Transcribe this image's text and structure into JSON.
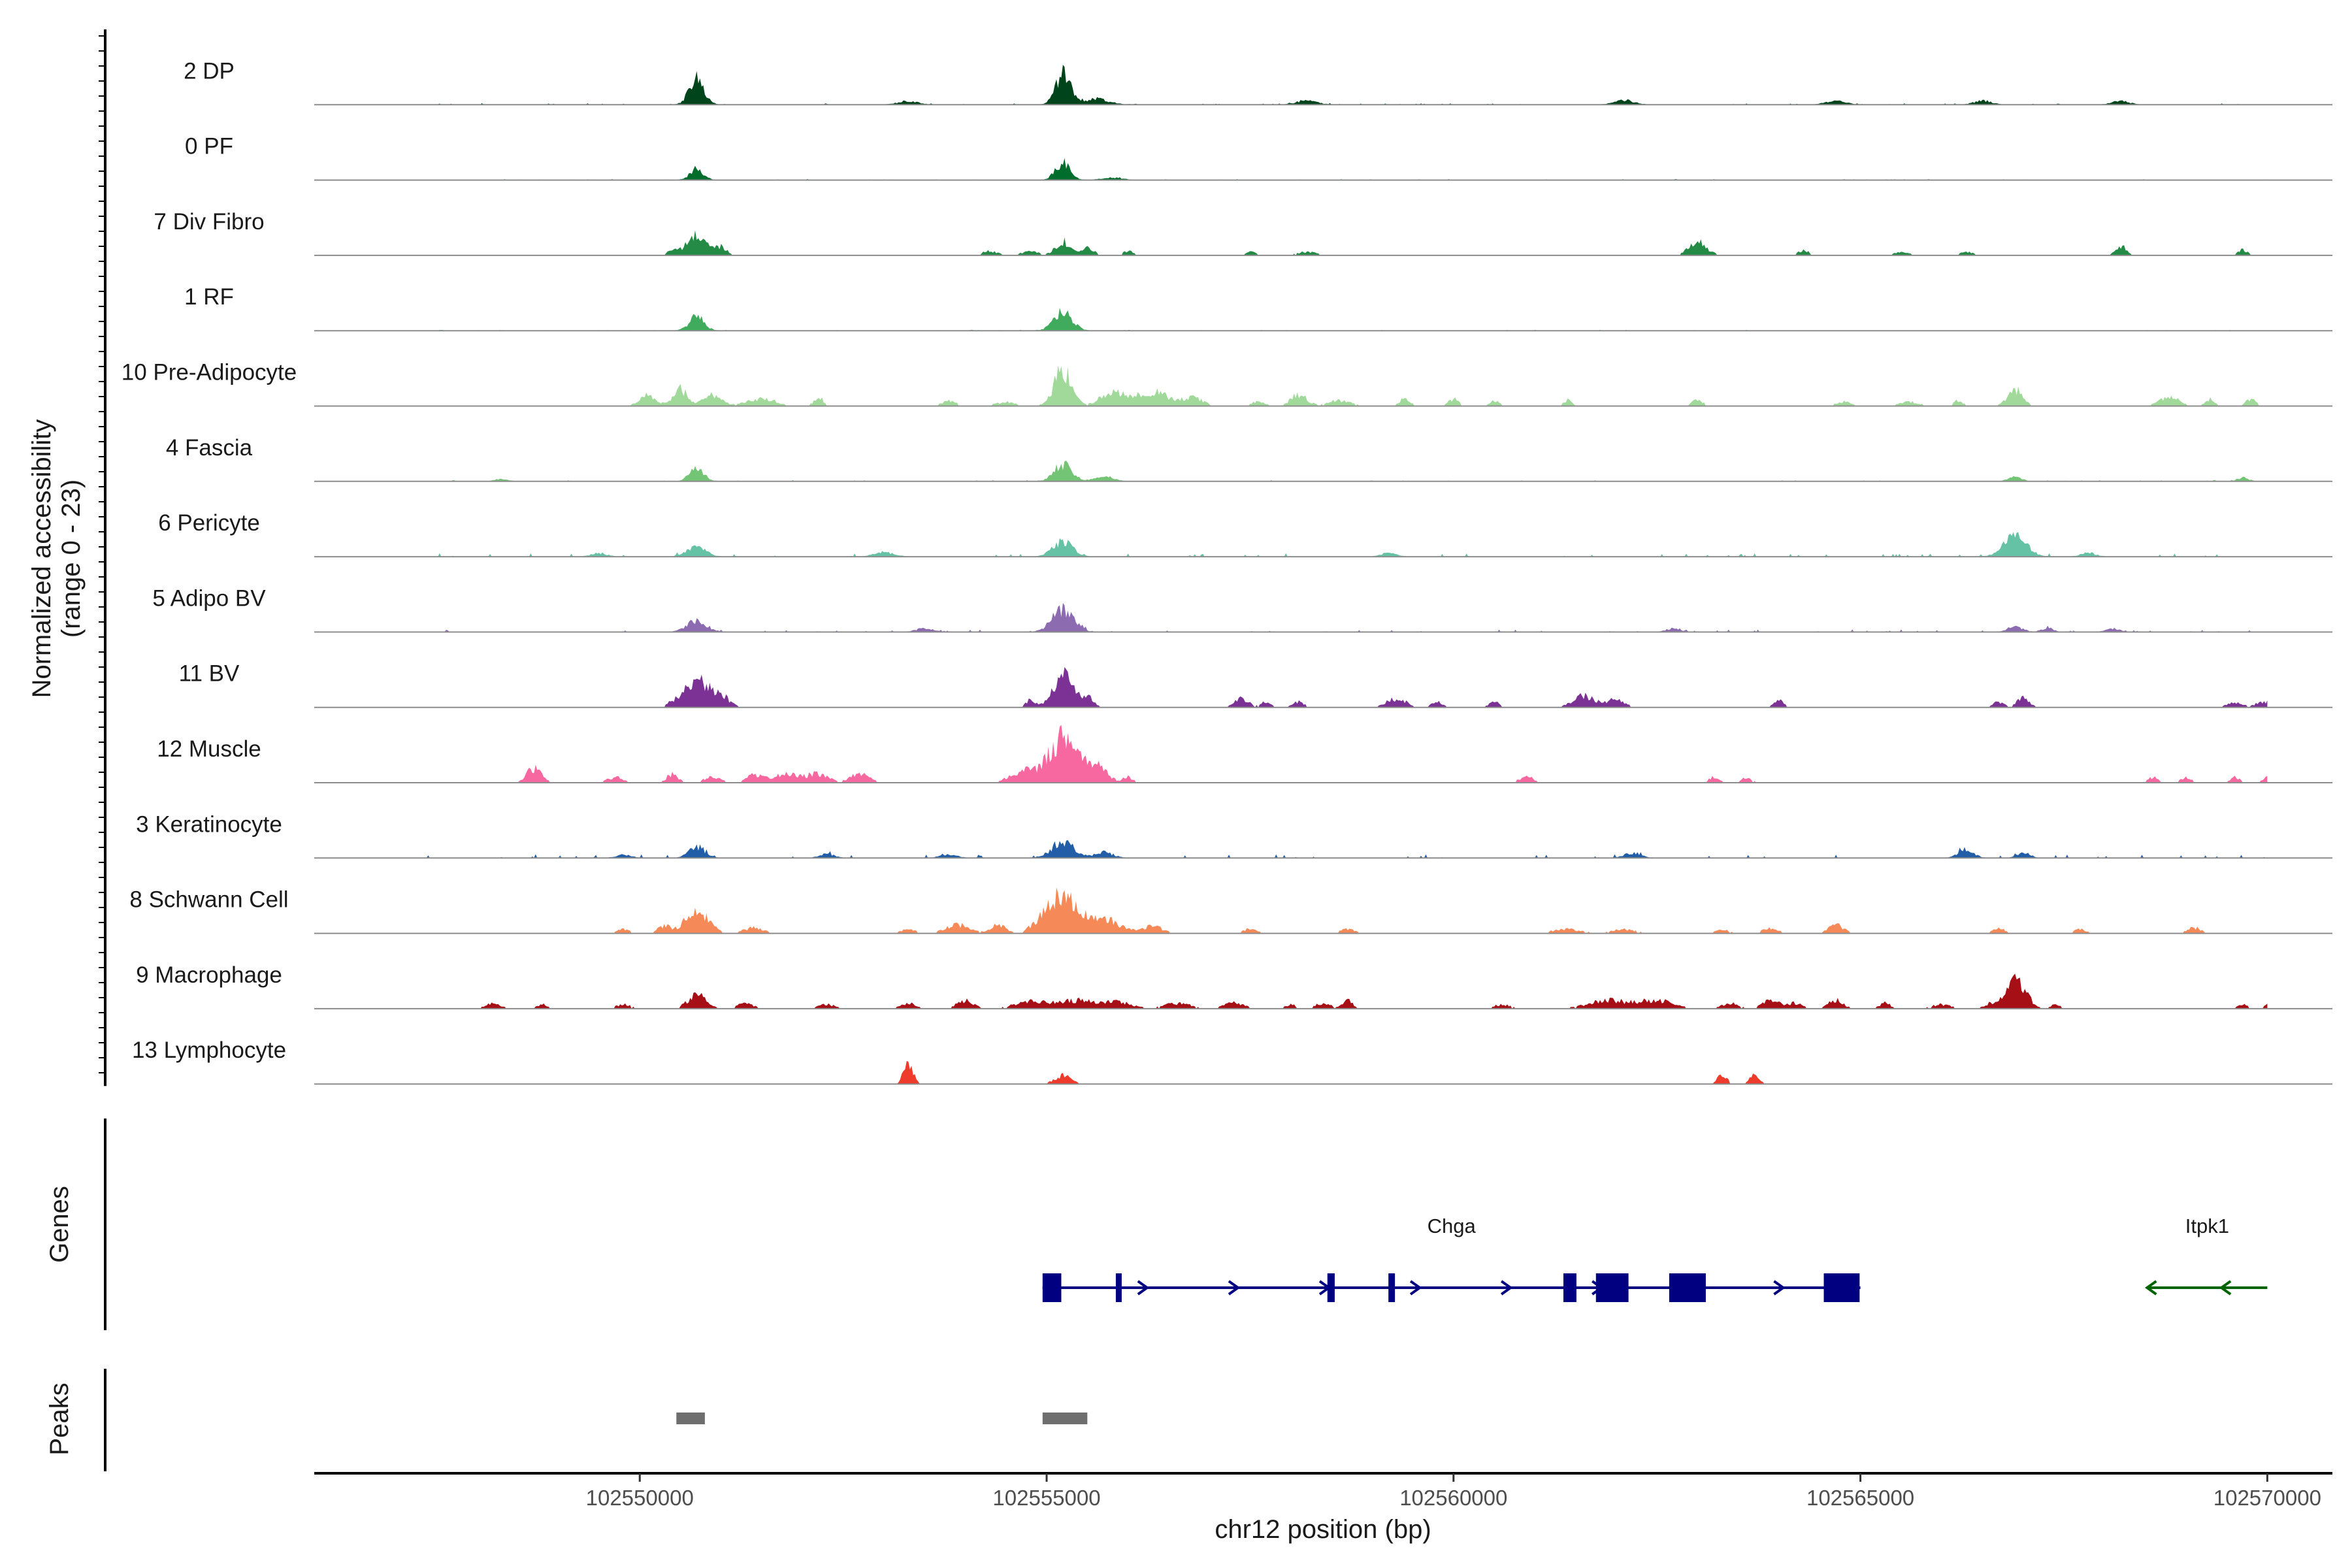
{
  "chart_data": {
    "type": "coverage",
    "chromosome": "chr12",
    "region": [
      102546000,
      102570800
    ],
    "xlabel": "chr12 position (bp)",
    "x_ticks": [
      102550000,
      102555000,
      102560000,
      102565000,
      102570000
    ],
    "x_tick_labels": [
      "102550000",
      "102555000",
      "102560000",
      "102565000",
      "102570000"
    ],
    "ylabel_line1": "Normalized accessibility",
    "ylabel_line2": "(range 0 - 23)",
    "y_range": [
      0,
      23
    ],
    "tracks": [
      {
        "label": "2 DP",
        "color": "#00441b",
        "background": 0.06,
        "spread": 0.45,
        "peaks": [
          [
            102550700,
            9,
            90
          ],
          [
            102555200,
            11,
            90
          ],
          [
            102555600,
            2,
            160
          ],
          [
            102553300,
            1.2,
            120
          ],
          [
            102558200,
            1.5,
            120
          ],
          [
            102562100,
            1.5,
            120
          ],
          [
            102564700,
            1.3,
            120
          ],
          [
            102566500,
            1.4,
            100
          ],
          [
            102568200,
            1.3,
            100
          ]
        ]
      },
      {
        "label": "0 PF",
        "color": "#006d2c",
        "background": 0.05,
        "spread": 0.3,
        "peaks": [
          [
            102550700,
            4,
            80
          ],
          [
            102555200,
            6,
            90
          ],
          [
            102555800,
            0.8,
            120
          ]
        ]
      },
      {
        "label": "7 Div Fibro",
        "color": "#238b45",
        "background": 0,
        "spread": 0,
        "peaks": [
          [
            102550700,
            7,
            120
          ],
          [
            102551000,
            3,
            70
          ],
          [
            102550400,
            2,
            60
          ],
          [
            102555200,
            5,
            90
          ],
          [
            102555500,
            2.5,
            80
          ],
          [
            102554300,
            1.5,
            100
          ],
          [
            102554800,
            1.5,
            100
          ],
          [
            102556000,
            1.5,
            60
          ],
          [
            102557500,
            1.2,
            80
          ],
          [
            102558200,
            1.2,
            120
          ],
          [
            102563000,
            5,
            110
          ],
          [
            102564300,
            2,
            60
          ],
          [
            102565500,
            1.2,
            90
          ],
          [
            102566300,
            1.2,
            80
          ],
          [
            102568200,
            3.5,
            60
          ],
          [
            102569700,
            2,
            60
          ]
        ]
      },
      {
        "label": "1 RF",
        "color": "#41ab5d",
        "background": 0.05,
        "spread": 0.25,
        "peaks": [
          [
            102550700,
            5,
            90
          ],
          [
            102555200,
            7,
            110
          ]
        ]
      },
      {
        "label": "10 Pre-Adipocyte",
        "color": "#a1d99b",
        "background": 0,
        "spread": 0,
        "peaks": [
          [
            102550100,
            4,
            100
          ],
          [
            102550500,
            6,
            90
          ],
          [
            102550900,
            4,
            110
          ],
          [
            102551500,
            2.5,
            180
          ],
          [
            102552200,
            3,
            60
          ],
          [
            102553800,
            2,
            80
          ],
          [
            102554500,
            1.5,
            120
          ],
          [
            102555200,
            13,
            110
          ],
          [
            102555800,
            5,
            140
          ],
          [
            102556300,
            5,
            200
          ],
          [
            102556800,
            3,
            120
          ],
          [
            102557600,
            1.5,
            90
          ],
          [
            102558100,
            4,
            100
          ],
          [
            102558600,
            2,
            140
          ],
          [
            102559400,
            3,
            60
          ],
          [
            102560000,
            2.5,
            60
          ],
          [
            102560500,
            2,
            60
          ],
          [
            102561400,
            2,
            60
          ],
          [
            102563000,
            2.5,
            60
          ],
          [
            102564800,
            1.5,
            100
          ],
          [
            102565600,
            1.5,
            120
          ],
          [
            102566200,
            2,
            60
          ],
          [
            102566900,
            6,
            90
          ],
          [
            102568800,
            3,
            120
          ],
          [
            102569300,
            2.5,
            60
          ],
          [
            102569800,
            2.5,
            60
          ]
        ]
      },
      {
        "label": "4 Fascia",
        "color": "#74c476",
        "background": 0.04,
        "spread": 0.4,
        "peaks": [
          [
            102550700,
            4.5,
            90
          ],
          [
            102555200,
            6,
            110
          ],
          [
            102555700,
            1.5,
            120
          ],
          [
            102548300,
            0.8,
            80
          ],
          [
            102566900,
            1.5,
            80
          ],
          [
            102569700,
            1.2,
            70
          ]
        ]
      },
      {
        "label": "6 Pericyte",
        "color": "#66c2a4",
        "background": 0.05,
        "spread": 1.2,
        "peaks": [
          [
            102550700,
            3.5,
            110
          ],
          [
            102555200,
            5.5,
            120
          ],
          [
            102566900,
            7,
            140
          ],
          [
            102549500,
            1.2,
            90
          ],
          [
            102553000,
            1.5,
            120
          ],
          [
            102559200,
            1.2,
            90
          ],
          [
            102567800,
            1.3,
            90
          ]
        ]
      },
      {
        "label": "5 Adipo BV",
        "color": "#8c6bb1",
        "background": 0.03,
        "spread": 0.9,
        "peaks": [
          [
            102550700,
            4,
            120
          ],
          [
            102555200,
            8,
            130
          ],
          [
            102553500,
            1.3,
            100
          ],
          [
            102562700,
            1.2,
            90
          ],
          [
            102566900,
            2,
            90
          ],
          [
            102567300,
            1.5,
            70
          ],
          [
            102568100,
            1.2,
            80
          ]
        ]
      },
      {
        "label": "11 BV",
        "color": "#7b3294",
        "background": 0,
        "spread": 0,
        "peaks": [
          [
            102550700,
            11,
            130
          ],
          [
            102550400,
            2,
            60
          ],
          [
            102551000,
            4,
            100
          ],
          [
            102555200,
            12,
            120
          ],
          [
            102554800,
            2.5,
            60
          ],
          [
            102555500,
            4,
            70
          ],
          [
            102557400,
            3,
            90
          ],
          [
            102557700,
            2,
            60
          ],
          [
            102558100,
            2,
            70
          ],
          [
            102559300,
            3,
            130
          ],
          [
            102559800,
            2,
            70
          ],
          [
            102560500,
            2,
            60
          ],
          [
            102561600,
            4,
            140
          ],
          [
            102562000,
            3,
            100
          ],
          [
            102564000,
            2.5,
            60
          ],
          [
            102566700,
            2,
            60
          ],
          [
            102567000,
            4,
            70
          ],
          [
            102569600,
            2,
            90
          ],
          [
            102569900,
            1.5,
            60
          ],
          [
            102570000,
            1.5,
            50
          ]
        ]
      },
      {
        "label": "12 Muscle",
        "color": "#f768a1",
        "background": 0,
        "spread": 0,
        "peaks": [
          [
            102548700,
            5,
            90
          ],
          [
            102549700,
            2,
            90
          ],
          [
            102550400,
            3,
            70
          ],
          [
            102550900,
            2,
            110
          ],
          [
            102551400,
            2.5,
            90
          ],
          [
            102551800,
            3,
            180
          ],
          [
            102552200,
            3,
            120
          ],
          [
            102552700,
            3,
            120
          ],
          [
            102554700,
            4,
            150
          ],
          [
            102555200,
            16,
            180
          ],
          [
            102555600,
            6,
            130
          ],
          [
            102556000,
            2,
            60
          ],
          [
            102560900,
            2,
            90
          ],
          [
            102563200,
            2,
            60
          ],
          [
            102563600,
            2,
            60
          ],
          [
            102568600,
            2,
            60
          ],
          [
            102569000,
            2,
            60
          ],
          [
            102569600,
            2,
            60
          ],
          [
            102570000,
            2,
            60
          ]
        ]
      },
      {
        "label": "3 Keratinocyte",
        "color": "#225ea8",
        "background": 0.05,
        "spread": 1.3,
        "peaks": [
          [
            102550700,
            4,
            100
          ],
          [
            102555200,
            6,
            130
          ],
          [
            102555700,
            2,
            110
          ],
          [
            102552300,
            1.3,
            90
          ],
          [
            102562200,
            1.8,
            100
          ],
          [
            102566300,
            3,
            90
          ],
          [
            102567000,
            1.8,
            80
          ],
          [
            102549800,
            1.1,
            90
          ],
          [
            102553800,
            1.2,
            100
          ]
        ]
      },
      {
        "label": "8 Schwann Cell",
        "color": "#f58a58",
        "background": 0,
        "spread": 0,
        "peaks": [
          [
            102549800,
            1.5,
            70
          ],
          [
            102550700,
            8,
            140
          ],
          [
            102550300,
            2.5,
            80
          ],
          [
            102551400,
            2,
            120
          ],
          [
            102553300,
            1.5,
            90
          ],
          [
            102553900,
            3,
            140
          ],
          [
            102554400,
            3,
            100
          ],
          [
            102554900,
            3,
            100
          ],
          [
            102555200,
            14,
            170
          ],
          [
            102555700,
            5,
            200
          ],
          [
            102556300,
            2.5,
            120
          ],
          [
            102557500,
            1.5,
            90
          ],
          [
            102558700,
            1.5,
            90
          ],
          [
            102561400,
            1.5,
            180
          ],
          [
            102562100,
            1.5,
            140
          ],
          [
            102563300,
            1.2,
            100
          ],
          [
            102563900,
            2,
            90
          ],
          [
            102564700,
            3,
            90
          ],
          [
            102566700,
            2,
            70
          ],
          [
            102567700,
            1.5,
            70
          ],
          [
            102569100,
            2,
            80
          ]
        ]
      },
      {
        "label": "9 Macrophage",
        "color": "#a50f15",
        "background": 0,
        "spread": 0,
        "peaks": [
          [
            102548200,
            2,
            90
          ],
          [
            102548800,
            1.5,
            60
          ],
          [
            102549800,
            1.5,
            90
          ],
          [
            102550700,
            5,
            110
          ],
          [
            102551300,
            2,
            90
          ],
          [
            102552300,
            1.5,
            100
          ],
          [
            102553300,
            2,
            90
          ],
          [
            102554000,
            3,
            100
          ],
          [
            102554800,
            2.5,
            200
          ],
          [
            102555400,
            3,
            240
          ],
          [
            102555900,
            2,
            160
          ],
          [
            102556600,
            2,
            160
          ],
          [
            102557300,
            2,
            120
          ],
          [
            102558000,
            1.5,
            60
          ],
          [
            102558400,
            2,
            90
          ],
          [
            102558700,
            3,
            60
          ],
          [
            102560600,
            1.5,
            100
          ],
          [
            102561900,
            3,
            240
          ],
          [
            102562500,
            3,
            200
          ],
          [
            102563400,
            2,
            100
          ],
          [
            102563900,
            3,
            100
          ],
          [
            102564200,
            2,
            100
          ],
          [
            102564700,
            3,
            90
          ],
          [
            102565300,
            2,
            70
          ],
          [
            102566000,
            1.5,
            120
          ],
          [
            102566600,
            1.5,
            90
          ],
          [
            102566900,
            10,
            130
          ],
          [
            102567400,
            1.5,
            60
          ],
          [
            102569700,
            1.5,
            60
          ],
          [
            102570000,
            1.5,
            40
          ]
        ]
      },
      {
        "label": "13 Lymphocyte",
        "color": "#ef3b2c",
        "background": 0,
        "spread": 0,
        "peaks": [
          [
            102553300,
            7,
            60
          ],
          [
            102555200,
            3,
            100
          ],
          [
            102563300,
            3,
            60
          ],
          [
            102563700,
            3,
            60
          ]
        ]
      }
    ],
    "genes_panel_label": "Genes",
    "genes": [
      {
        "name": "Chga",
        "strand": "+",
        "color": "#000080",
        "start": 102554950,
        "end": 102565000,
        "exons": [
          [
            102554950,
            102555180
          ],
          [
            102555850,
            102555900
          ],
          [
            102558450,
            102558540
          ],
          [
            102559200,
            102559280
          ],
          [
            102561350,
            102561510
          ],
          [
            102561750,
            102562150
          ],
          [
            102562650,
            102563100
          ],
          [
            102564550,
            102564990
          ]
        ]
      },
      {
        "name": "Itpk1",
        "strand": "-",
        "color": "#006400",
        "start": 102568550,
        "end": 102570000,
        "exons": []
      }
    ],
    "peaks_panel_label": "Peaks",
    "peaks_color": "#6e6e6e",
    "called_peaks": [
      [
        102550450,
        102550800
      ],
      [
        102554950,
        102555500
      ]
    ]
  }
}
